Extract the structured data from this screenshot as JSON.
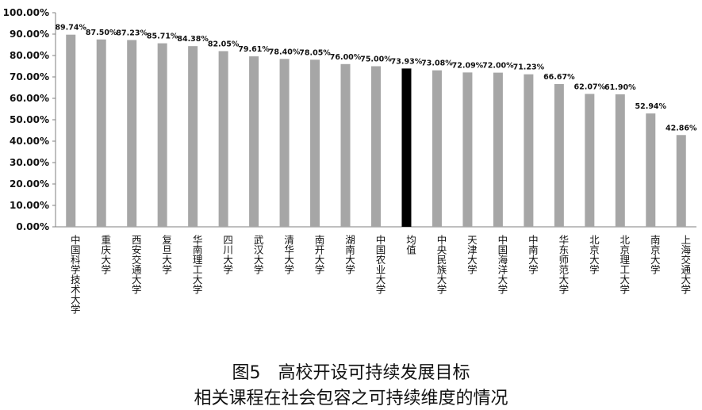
{
  "chart_data": {
    "type": "bar",
    "categories": [
      "中国科学技术大学",
      "重庆大学",
      "西安交通大学",
      "复旦大学",
      "华南理工大学",
      "四川大学",
      "武汉大学",
      "清华大学",
      "南开大学",
      "湖南大学",
      "中国农业大学",
      "均值",
      "中央民族大学",
      "天津大学",
      "中国海洋大学",
      "中南大学",
      "华东师范大学",
      "北京大学",
      "北京理工大学",
      "南京大学",
      "上海交通大学"
    ],
    "values": [
      89.74,
      87.5,
      87.23,
      85.71,
      84.38,
      82.05,
      79.61,
      78.4,
      78.05,
      76.0,
      75.0,
      73.93,
      73.08,
      72.09,
      72.0,
      71.23,
      66.67,
      62.07,
      61.9,
      52.94,
      42.86
    ],
    "value_labels": [
      "89.74%",
      "87.50%",
      "87.23%",
      "85.71%",
      "84.38%",
      "82.05%",
      "79.61%",
      "78.40%",
      "78.05%",
      "76.00%",
      "75.00%",
      "73.93%",
      "73.08%",
      "72.09%",
      "72.00%",
      "71.23%",
      "66.67%",
      "62.07%",
      "61.90%",
      "52.94%",
      "42.86%"
    ],
    "yticks": [
      "0.00%",
      "10.00%",
      "20.00%",
      "30.00%",
      "40.00%",
      "50.00%",
      "60.00%",
      "70.00%",
      "80.00%",
      "90.00%",
      "100.00%"
    ],
    "ylim": [
      0,
      100
    ],
    "highlight_category": "均值",
    "bar_color": "#a6a6a6",
    "highlight_color": "#000000",
    "grid": false,
    "legend": "none"
  },
  "caption": {
    "line1": "图5　高校开设可持续发展目标",
    "line2": "相关课程在社会包容之可持续维度的情况"
  }
}
